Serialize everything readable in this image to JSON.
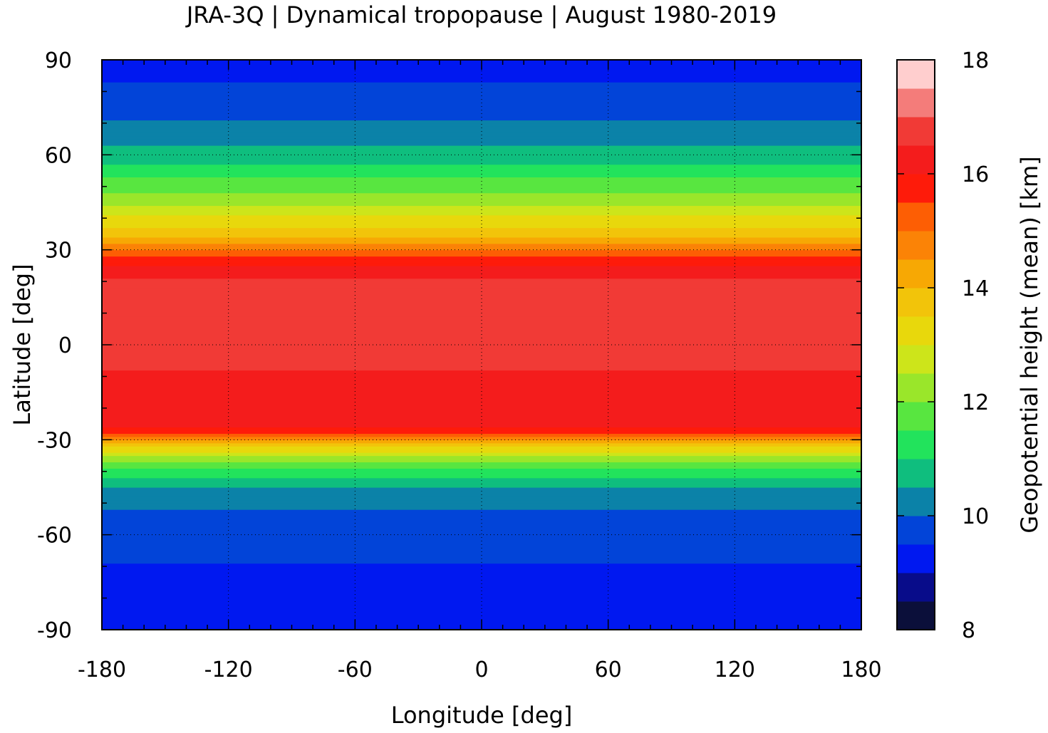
{
  "chart_data": {
    "type": "heatmap",
    "subtype": "filled-contour-map",
    "title": "JRA-3Q | Dynamical tropopause | August 1980-2019",
    "xlabel": "Longitude [deg]",
    "ylabel": "Latitude [deg]",
    "colorbar_label": "Geopotential height (mean) [km]",
    "xlim": [
      -180,
      180
    ],
    "ylim": [
      -90,
      90
    ],
    "x_ticks": [
      -180,
      -120,
      -60,
      0,
      60,
      120,
      180
    ],
    "y_ticks": [
      90,
      60,
      30,
      0,
      -30,
      -60,
      -90
    ],
    "x_tick_labels": [
      "-180",
      "-120",
      "-60",
      "0",
      "60",
      "120",
      "180"
    ],
    "y_tick_labels": [
      "90",
      "60",
      "30",
      "0",
      "-30",
      "-60",
      "-90"
    ],
    "grid": true,
    "colorbar_range": [
      8,
      18
    ],
    "colorbar_ticks": [
      8,
      10,
      12,
      14,
      16,
      18
    ],
    "colorbar_tick_labels": [
      "8",
      "10",
      "12",
      "14",
      "16",
      "18"
    ],
    "contour_levels": [
      8,
      8.5,
      9,
      9.5,
      10,
      10.5,
      11,
      11.5,
      12,
      12.5,
      13,
      13.5,
      14,
      14.5,
      15,
      15.5,
      16,
      16.5,
      17,
      17.5,
      18
    ],
    "level_colors": [
      "#0b0f3a",
      "#080c8a",
      "#0018f0",
      "#0244d8",
      "#0b82a8",
      "#0fbe7e",
      "#22e35c",
      "#58e640",
      "#9ae62a",
      "#cde51a",
      "#e8d80c",
      "#f2c40a",
      "#f7a804",
      "#fb8306",
      "#fd5e04",
      "#fe1b0a",
      "#f41c1c",
      "#f13a36",
      "#f47c7a",
      "#ffcece"
    ],
    "latitude_profile": [
      {
        "lat": -90,
        "height": 9.4
      },
      {
        "lat": -75,
        "height": 9.4
      },
      {
        "lat": -62,
        "height": 9.6
      },
      {
        "lat": -55,
        "height": 9.8
      },
      {
        "lat": -45,
        "height": 10.5
      },
      {
        "lat": -38,
        "height": 11.6
      },
      {
        "lat": -33,
        "height": 13.2
      },
      {
        "lat": -29,
        "height": 15.0
      },
      {
        "lat": -26,
        "height": 16.1
      },
      {
        "lat": -15,
        "height": 16.4
      },
      {
        "lat": 0,
        "height": 16.6
      },
      {
        "lat": 20,
        "height": 16.6
      },
      {
        "lat": 28,
        "height": 15.6
      },
      {
        "lat": 35,
        "height": 13.8
      },
      {
        "lat": 45,
        "height": 12.4
      },
      {
        "lat": 55,
        "height": 11.2
      },
      {
        "lat": 65,
        "height": 10.3
      },
      {
        "lat": 80,
        "height": 9.6
      },
      {
        "lat": 90,
        "height": 9.3
      }
    ],
    "colors": {
      "coastline": "#c0c0c0",
      "grid": "#000000"
    }
  }
}
